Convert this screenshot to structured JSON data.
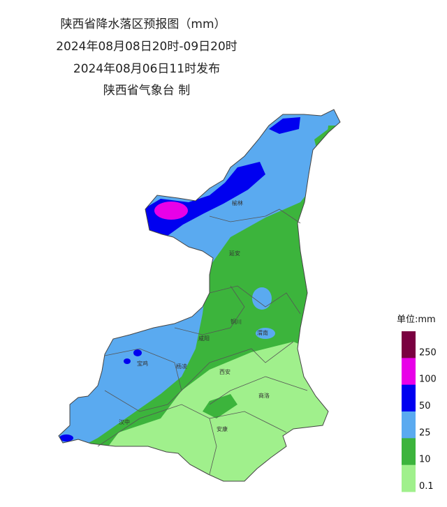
{
  "header": {
    "title": "陕西省降水落区预报图（mm）",
    "period": "2024年08月08日20时-09日20时",
    "issued": "2024年08月06日11时发布",
    "issuer": "陕西省气象台 制"
  },
  "cities": [
    "榆林",
    "延安",
    "铜川",
    "渭南",
    "咸阳",
    "宝鸡",
    "杨凌",
    "西安",
    "商洛",
    "汉中",
    "安康"
  ],
  "legend": {
    "unit": "单位:mm",
    "colors": [
      "#7a0040",
      "#e800e8",
      "#0000f0",
      "#5aaaf0",
      "#3cb43c",
      "#a0f08c"
    ],
    "labels": [
      "250",
      "100",
      "50",
      "25",
      "10",
      "0.1"
    ]
  }
}
